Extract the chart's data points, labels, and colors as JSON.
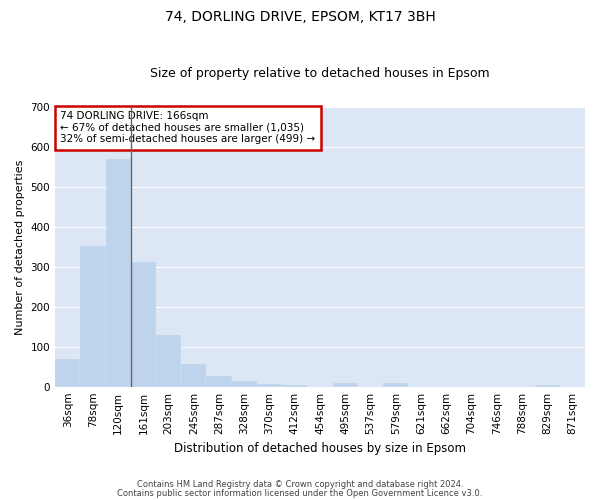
{
  "title": "74, DORLING DRIVE, EPSOM, KT17 3BH",
  "subtitle": "Size of property relative to detached houses in Epsom",
  "xlabel": "Distribution of detached houses by size in Epsom",
  "ylabel": "Number of detached properties",
  "bar_color": "#bed3ec",
  "highlight_line_color": "#666666",
  "categories": [
    "36sqm",
    "78sqm",
    "120sqm",
    "161sqm",
    "203sqm",
    "245sqm",
    "287sqm",
    "328sqm",
    "370sqm",
    "412sqm",
    "454sqm",
    "495sqm",
    "537sqm",
    "579sqm",
    "621sqm",
    "662sqm",
    "704sqm",
    "746sqm",
    "788sqm",
    "829sqm",
    "871sqm"
  ],
  "values": [
    70,
    352,
    570,
    312,
    130,
    57,
    27,
    15,
    7,
    4,
    0,
    8,
    0,
    9,
    0,
    0,
    0,
    0,
    0,
    5,
    0
  ],
  "ylim": [
    0,
    700
  ],
  "yticks": [
    0,
    100,
    200,
    300,
    400,
    500,
    600,
    700
  ],
  "annotation_line1": "74 DORLING DRIVE: 166sqm",
  "annotation_line2": "← 67% of detached houses are smaller (1,035)",
  "annotation_line3": "32% of semi-detached houses are larger (499) →",
  "annotation_box_color": "white",
  "annotation_box_edge_color": "#cc0000",
  "bg_color": "#dce6f5",
  "grid_color": "#ffffff",
  "footer_line1": "Contains HM Land Registry data © Crown copyright and database right 2024.",
  "footer_line2": "Contains public sector information licensed under the Open Government Licence v3.0.",
  "title_fontsize": 10,
  "subtitle_fontsize": 9,
  "ylabel_fontsize": 8,
  "xlabel_fontsize": 8.5,
  "tick_fontsize": 7.5,
  "annotation_fontsize": 7.5,
  "footer_fontsize": 6
}
